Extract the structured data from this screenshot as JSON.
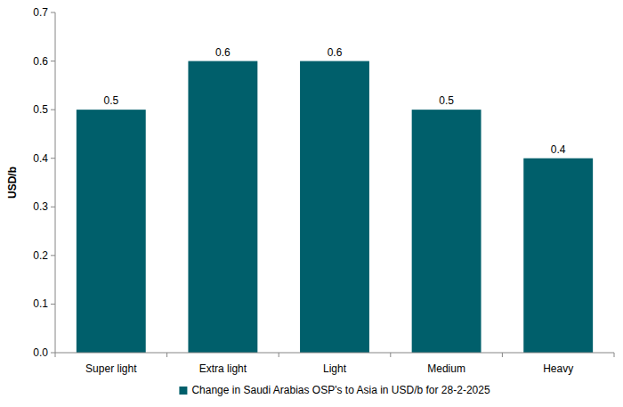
{
  "chart_data": {
    "type": "bar",
    "y_label": "USD/b",
    "categories": [
      "Super light",
      "Extra light",
      "Light",
      "Medium",
      "Heavy"
    ],
    "series": [
      {
        "name": "Change in Saudi Arabias OSP's to Asia in USD/b for 28-2-2025",
        "color": "#005f6b",
        "values": [
          0.5,
          0.6,
          0.6,
          0.5,
          0.4
        ]
      }
    ],
    "ylim": [
      0,
      0.7
    ],
    "yticks": [
      {
        "value": 0,
        "label": "0.0"
      },
      0.1,
      0.2,
      0.3,
      0.4,
      0.5,
      0.6,
      0.7
    ],
    "grid": false,
    "legend": "bottom",
    "data_labels": true
  }
}
